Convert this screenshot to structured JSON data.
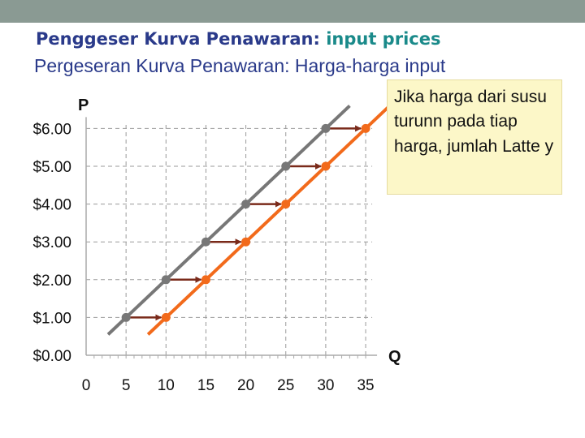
{
  "title": {
    "main": "Penggeser Kurva Penawaran:",
    "accent": "input prices"
  },
  "subtitle": "Pergeseran Kurva Penawaran: Harga-harga input",
  "note": "Jika harga dari susu turunn pada tiap harga, jumlah Latte y",
  "colors": {
    "title": "#2a3a8a",
    "accent": "#1a8a8a",
    "s1": "#777777",
    "s2": "#f26a1b",
    "arrow": "#7a2a1a",
    "note_bg": "#fcf7c8"
  },
  "chart_data": {
    "type": "line",
    "xlabel": "Q",
    "ylabel": "P",
    "xlim": [
      0,
      35
    ],
    "ylim": [
      0,
      6
    ],
    "x_ticks": [
      "0",
      "5",
      "10",
      "15",
      "20",
      "25",
      "30",
      "35"
    ],
    "y_ticks": [
      "$0.00",
      "$1.00",
      "$2.00",
      "$3.00",
      "$4.00",
      "$5.00",
      "$6.00"
    ],
    "grid": "dashed",
    "series": [
      {
        "id": "S1",
        "color": "#777777",
        "points": [
          [
            5,
            1
          ],
          [
            10,
            2
          ],
          [
            15,
            3
          ],
          [
            20,
            4
          ],
          [
            25,
            5
          ],
          [
            30,
            6
          ]
        ]
      },
      {
        "id": "S2",
        "color": "#f26a1b",
        "points": [
          [
            10,
            1
          ],
          [
            15,
            2
          ],
          [
            20,
            3
          ],
          [
            25,
            4
          ],
          [
            30,
            5
          ],
          [
            35,
            6
          ]
        ]
      }
    ],
    "shift_arrows": [
      {
        "from": [
          5,
          1
        ],
        "to": [
          10,
          1
        ]
      },
      {
        "from": [
          10,
          2
        ],
        "to": [
          15,
          2
        ]
      },
      {
        "from": [
          15,
          3
        ],
        "to": [
          20,
          3
        ]
      },
      {
        "from": [
          20,
          4
        ],
        "to": [
          25,
          4
        ]
      },
      {
        "from": [
          25,
          5
        ],
        "to": [
          30,
          5
        ]
      },
      {
        "from": [
          30,
          6
        ],
        "to": [
          35,
          6
        ]
      }
    ]
  }
}
